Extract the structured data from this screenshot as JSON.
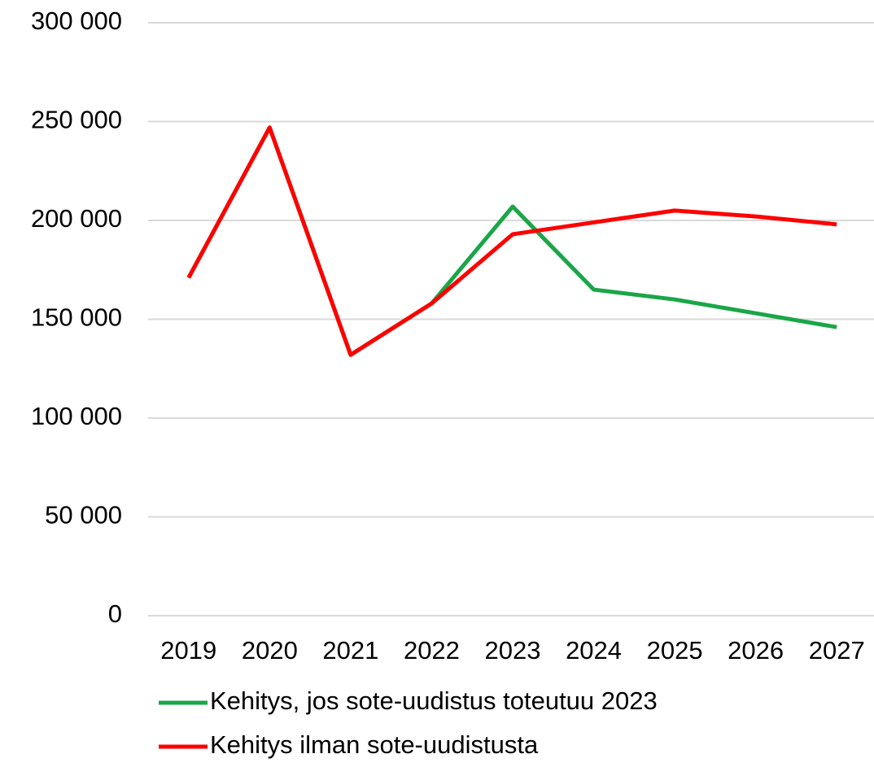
{
  "chart_data": {
    "type": "line",
    "categories": [
      "2019",
      "2020",
      "2021",
      "2022",
      "2023",
      "2024",
      "2025",
      "2026",
      "2027"
    ],
    "series": [
      {
        "name": "Kehitys, jos sote-uudistus toteutuu 2023",
        "color": "#1aa648",
        "values": [
          171000,
          247000,
          132000,
          158000,
          207000,
          165000,
          160000,
          153000,
          146000
        ]
      },
      {
        "name": "Kehitys ilman sote-uudistusta",
        "color": "#ff0000",
        "values": [
          171000,
          247000,
          132000,
          158000,
          193000,
          199000,
          205000,
          202000,
          198000
        ]
      }
    ],
    "ylim": [
      0,
      300000
    ],
    "yticks": [
      0,
      {
        "value": 50000,
        "label": "50 000"
      },
      {
        "value": 100000,
        "label": "100 000"
      },
      {
        "value": 150000,
        "label": "150 000"
      },
      {
        "value": 200000,
        "label": "200 000"
      },
      {
        "value": 250000,
        "label": "250 000"
      },
      {
        "value": 300000,
        "label": "300 000"
      }
    ],
    "grid": true,
    "legend": "bottom"
  }
}
